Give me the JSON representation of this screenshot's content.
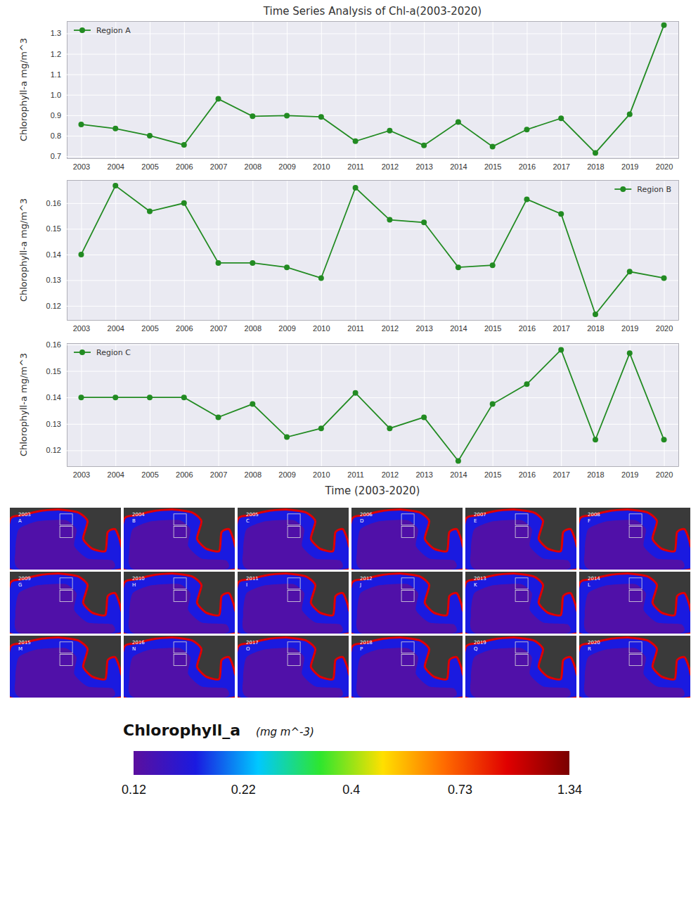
{
  "chart_data": [
    {
      "type": "line",
      "title": "Time Series Analysis of Chl-a(2003-2020)",
      "ylabel": "Chlorophyll-a mg/m^3",
      "categories": [
        "2003",
        "2004",
        "2005",
        "2006",
        "2007",
        "2008",
        "2009",
        "2010",
        "2011",
        "2012",
        "2013",
        "2014",
        "2015",
        "2016",
        "2017",
        "2018",
        "2019",
        "2020"
      ],
      "series": [
        {
          "name": "Region A",
          "color": "#228b22",
          "marker": "o",
          "values": [
            0.855,
            0.835,
            0.8,
            0.755,
            0.98,
            0.895,
            0.898,
            0.892,
            0.773,
            0.825,
            0.753,
            0.867,
            0.747,
            0.83,
            0.885,
            0.716,
            0.905,
            1.34
          ]
        }
      ],
      "ylim": [
        0.69,
        1.36
      ],
      "yticks": [
        0.7,
        0.8,
        0.9,
        {
          "value": 1,
          "label": "1.0"
        },
        1.1,
        1.2,
        1.3
      ],
      "grid": true,
      "legend": "upper left"
    },
    {
      "type": "line",
      "ylabel": "Chlorophyll-a mg/m^3",
      "categories": [
        "2003",
        "2004",
        "2005",
        "2006",
        "2007",
        "2008",
        "2009",
        "2010",
        "2011",
        "2012",
        "2013",
        "2014",
        "2015",
        "2016",
        "2017",
        "2018",
        "2019",
        "2020"
      ],
      "series": [
        {
          "name": "Region B",
          "color": "#228b22",
          "marker": "o",
          "values": [
            0.14,
            0.1668,
            0.1568,
            0.16,
            0.1367,
            0.1367,
            0.135,
            0.1308,
            0.166,
            0.1535,
            0.1525,
            0.135,
            0.1358,
            0.1615,
            0.1558,
            0.1167,
            0.1333,
            0.1308
          ]
        }
      ],
      "ylim": [
        0.1145,
        0.169
      ],
      "yticks": [
        0.12,
        0.13,
        0.14,
        0.15,
        0.16
      ],
      "grid": true,
      "legend": "upper right"
    },
    {
      "type": "line",
      "ylabel": "Chlorophyll-a mg/m^3",
      "xlabel": "Time (2003-2020)",
      "categories": [
        "2003",
        "2004",
        "2005",
        "2006",
        "2007",
        "2008",
        "2009",
        "2010",
        "2011",
        "2012",
        "2013",
        "2014",
        "2015",
        "2016",
        "2017",
        "2018",
        "2019",
        "2020"
      ],
      "series": [
        {
          "name": "Region C",
          "color": "#228b22",
          "marker": "o",
          "values": [
            0.14,
            0.14,
            0.14,
            0.14,
            0.1325,
            0.1375,
            0.125,
            0.1283,
            0.1417,
            0.1283,
            0.1325,
            0.116,
            0.1375,
            0.145,
            0.158,
            0.124,
            0.1567,
            0.124
          ]
        }
      ],
      "ylim": [
        0.114,
        0.1605
      ],
      "yticks": [
        0.12,
        0.13,
        0.14,
        0.15,
        0.16
      ],
      "grid": true,
      "legend": "upper left"
    }
  ],
  "maps": {
    "panels": [
      {
        "year": "2003",
        "letter": "A"
      },
      {
        "year": "2004",
        "letter": "B"
      },
      {
        "year": "2005",
        "letter": "C"
      },
      {
        "year": "2006",
        "letter": "D"
      },
      {
        "year": "2007",
        "letter": "E"
      },
      {
        "year": "2008",
        "letter": "F"
      },
      {
        "year": "2009",
        "letter": "G"
      },
      {
        "year": "2010",
        "letter": "H"
      },
      {
        "year": "2011",
        "letter": "I"
      },
      {
        "year": "2012",
        "letter": "J"
      },
      {
        "year": "2013",
        "letter": "K"
      },
      {
        "year": "2014",
        "letter": "L"
      },
      {
        "year": "2015",
        "letter": "M"
      },
      {
        "year": "2016",
        "letter": "N"
      },
      {
        "year": "2017",
        "letter": "O"
      },
      {
        "year": "2018",
        "letter": "P"
      },
      {
        "year": "2019",
        "letter": "Q"
      },
      {
        "year": "2020",
        "letter": "R"
      }
    ]
  },
  "colorbar": {
    "title": "Chlorophyll_a",
    "unit": "(mg m^-3)",
    "range": [
      0.12,
      1.34
    ],
    "ticks": [
      0.12,
      0.22,
      0.4,
      0.73,
      1.34
    ],
    "log": true
  }
}
